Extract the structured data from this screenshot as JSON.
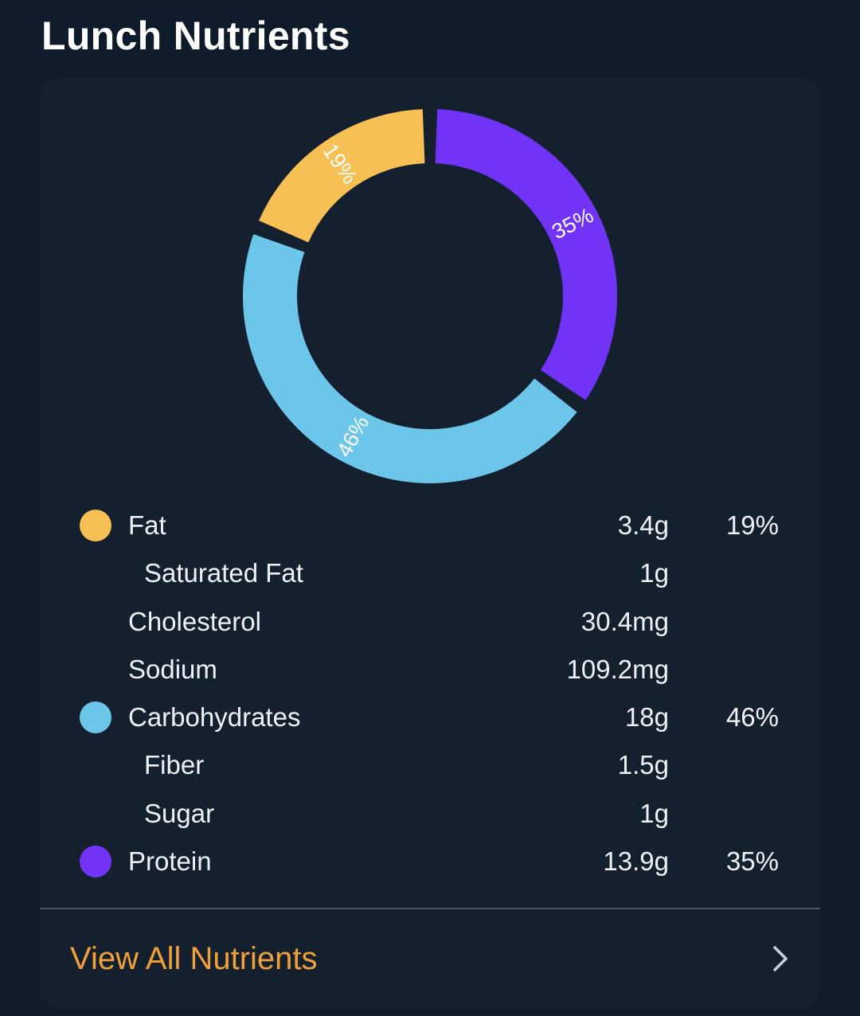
{
  "header": {
    "title": "Lunch Nutrients"
  },
  "chart_data": {
    "type": "pie",
    "style": "donut",
    "slices": [
      {
        "label": "Fat",
        "value": 19,
        "label_text": "19%",
        "color": "#f6c055"
      },
      {
        "label": "Carbohydrates",
        "value": 46,
        "label_text": "46%",
        "color": "#6cc6ea"
      },
      {
        "label": "Protein",
        "value": 35,
        "label_text": "35%",
        "color": "#7133f5"
      }
    ]
  },
  "nutrients": [
    {
      "label": "Fat",
      "amount": "3.4g",
      "percent": "19%",
      "color": "#f6c055",
      "sub": false
    },
    {
      "label": "Saturated Fat",
      "amount": "1g",
      "percent": "",
      "color": "",
      "sub": true
    },
    {
      "label": "Cholesterol",
      "amount": "30.4mg",
      "percent": "",
      "color": "",
      "sub": false
    },
    {
      "label": "Sodium",
      "amount": "109.2mg",
      "percent": "",
      "color": "",
      "sub": false
    },
    {
      "label": "Carbohydrates",
      "amount": "18g",
      "percent": "46%",
      "color": "#6cc6ea",
      "sub": false
    },
    {
      "label": "Fiber",
      "amount": "1.5g",
      "percent": "",
      "color": "",
      "sub": true
    },
    {
      "label": "Sugar",
      "amount": "1g",
      "percent": "",
      "color": "",
      "sub": true
    },
    {
      "label": "Protein",
      "amount": "13.9g",
      "percent": "35%",
      "color": "#7133f5",
      "sub": false
    }
  ],
  "footer": {
    "link_label": "View All Nutrients",
    "chevron_icon": "chevron-right-icon",
    "link_color": "#f0a03a"
  }
}
